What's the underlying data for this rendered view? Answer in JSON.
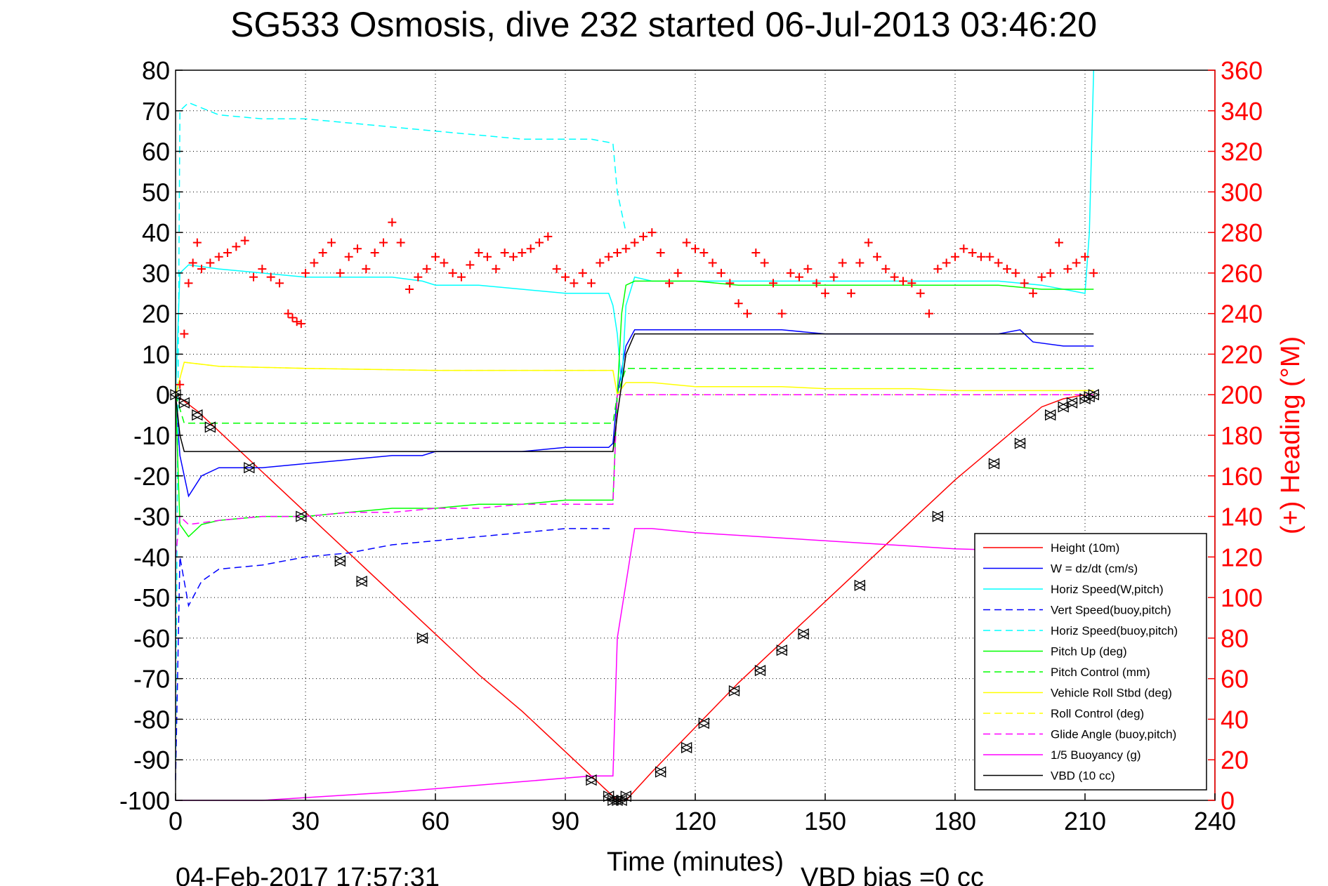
{
  "title": "SG533 Osmosis, dive 232 started 06-Jul-2013 03:46:20",
  "footer": {
    "timestamp": "04-Feb-2017 17:57:31",
    "vbd_bias": "VBD bias =0 cc"
  },
  "chart_data": {
    "type": "line",
    "title": "SG533 Osmosis, dive 232 started 06-Jul-2013 03:46:20",
    "xlabel": "Time (minutes)",
    "ylabel": "",
    "y2label": "(+) Heading (°M)",
    "xlim": [
      0,
      240
    ],
    "ylim": [
      -100,
      80
    ],
    "y2lim": [
      0,
      360
    ],
    "xticks": [
      "0",
      "30",
      "60",
      "90",
      "120",
      "150",
      "180",
      "210",
      "240"
    ],
    "yticks": [
      "80",
      "70",
      "60",
      "50",
      "40",
      "30",
      "20",
      "10",
      "0",
      "-10",
      "-20",
      "-30",
      "-40",
      "-50",
      "-60",
      "-70",
      "-80",
      "-90",
      "-100"
    ],
    "y2ticks": [
      "360",
      "340",
      "320",
      "300",
      "280",
      "260",
      "240",
      "220",
      "200",
      "180",
      "160",
      "140",
      "120",
      "100",
      "80",
      "60",
      "40",
      "20",
      "0"
    ],
    "grid": true,
    "legend_position": "bottom-right",
    "colors": {
      "red": "#ff0000",
      "blue": "#0000ff",
      "cyan": "#00ffff",
      "green": "#00ff00",
      "yellow": "#ffff00",
      "magenta": "#ff00ff",
      "black": "#000000"
    },
    "series": [
      {
        "name": "Height (10m)",
        "color": "#ff0000",
        "dash": "solid",
        "x": [
          0,
          5,
          10,
          20,
          30,
          40,
          50,
          60,
          70,
          80,
          90,
          100,
          102,
          104,
          110,
          120,
          130,
          140,
          150,
          160,
          170,
          180,
          190,
          200,
          205,
          210,
          212
        ],
        "y": [
          0,
          -4,
          -9,
          -19,
          -29,
          -39,
          -49,
          -59,
          -69,
          -78,
          -88,
          -98,
          -100,
          -100,
          -93,
          -82,
          -71,
          -61,
          -51,
          -41,
          -31,
          -21,
          -12,
          -3,
          -1,
          0,
          0
        ]
      },
      {
        "name": "W = dz/dt (cm/s)",
        "color": "#0000ff",
        "dash": "solid",
        "x": [
          0,
          1,
          3,
          6,
          10,
          20,
          30,
          40,
          50,
          57,
          60,
          70,
          80,
          90,
          100,
          101,
          102,
          104,
          106,
          110,
          120,
          130,
          140,
          150,
          160,
          170,
          180,
          190,
          195,
          198,
          205,
          212
        ],
        "y": [
          0,
          -15,
          -25,
          -20,
          -18,
          -18,
          -17,
          -16,
          -15,
          -15,
          -14,
          -14,
          -14,
          -13,
          -13,
          -12,
          0,
          12,
          16,
          16,
          16,
          16,
          16,
          15,
          15,
          15,
          15,
          15,
          16,
          13,
          12,
          12
        ]
      },
      {
        "name": "Horiz Speed(W,pitch)",
        "color": "#00ffff",
        "dash": "solid",
        "x": [
          0,
          1,
          3,
          10,
          20,
          30,
          40,
          50,
          57,
          60,
          70,
          80,
          90,
          100,
          101,
          102,
          103,
          104,
          106,
          110,
          120,
          130,
          140,
          150,
          160,
          170,
          180,
          190,
          200,
          210,
          211,
          212
        ],
        "y": [
          0,
          30,
          32,
          31,
          30,
          29,
          29,
          29,
          28,
          27,
          27,
          26,
          25,
          25,
          22,
          15,
          2,
          22,
          29,
          28,
          28,
          28,
          28,
          28,
          28,
          28,
          28,
          28,
          27,
          25,
          40,
          80
        ]
      },
      {
        "name": "Vert Speed(buoy,pitch)",
        "color": "#0000ff",
        "dash": "dashed",
        "x": [
          0,
          1,
          3,
          6,
          10,
          20,
          30,
          40,
          50,
          60,
          70,
          80,
          90,
          96,
          101
        ],
        "y": [
          -95,
          -40,
          -52,
          -46,
          -43,
          -42,
          -40,
          -39,
          -37,
          -36,
          -35,
          -34,
          -33,
          -33,
          -33
        ]
      },
      {
        "name": "Horiz Speed(buoy,pitch)",
        "color": "#00ffff",
        "dash": "dashed",
        "x": [
          0,
          1,
          3,
          10,
          20,
          30,
          40,
          50,
          60,
          70,
          80,
          90,
          96,
          101,
          102,
          104
        ],
        "y": [
          -90,
          70,
          72,
          69,
          68,
          68,
          67,
          66,
          65,
          64,
          63,
          63,
          63,
          62,
          50,
          40
        ]
      },
      {
        "name": "Pitch Up (deg)",
        "color": "#00ff00",
        "dash": "solid",
        "x": [
          0,
          1,
          3,
          6,
          10,
          20,
          30,
          40,
          50,
          60,
          70,
          80,
          90,
          96,
          101,
          102,
          103,
          104,
          106,
          110,
          120,
          130,
          140,
          150,
          160,
          170,
          180,
          190,
          200,
          210,
          212
        ],
        "y": [
          0,
          -32,
          -35,
          -32,
          -31,
          -30,
          -30,
          -29,
          -28,
          -28,
          -27,
          -27,
          -26,
          -26,
          -26,
          0,
          20,
          27,
          28,
          28,
          28,
          27,
          27,
          27,
          27,
          27,
          27,
          27,
          26,
          26,
          26
        ]
      },
      {
        "name": "Pitch Control (mm)",
        "color": "#00ff00",
        "dash": "dashed",
        "x": [
          0,
          2,
          101,
          102,
          104,
          212
        ],
        "y": [
          0,
          -7,
          -7,
          0,
          6.5,
          6.5
        ]
      },
      {
        "name": "Vehicle Roll Stbd (deg)",
        "color": "#ffff00",
        "dash": "solid",
        "x": [
          0,
          2,
          10,
          30,
          60,
          90,
          101,
          102,
          104,
          110,
          120,
          130,
          140,
          150,
          160,
          170,
          180,
          190,
          200,
          212
        ],
        "y": [
          0,
          8,
          7,
          6.5,
          6,
          6,
          6,
          0,
          3,
          3,
          2,
          2,
          2,
          1.5,
          1.5,
          1.5,
          1,
          1,
          1,
          1
        ]
      },
      {
        "name": "Roll Control (deg)",
        "color": "#ffff00",
        "dash": "dashed",
        "x": [
          0,
          2,
          10,
          30,
          60,
          90,
          101,
          102,
          104,
          212
        ],
        "y": [
          0,
          8,
          7,
          6.5,
          6,
          6,
          6,
          0,
          0,
          0
        ]
      },
      {
        "name": "Glide Angle (buoy,pitch)",
        "color": "#ff00ff",
        "dash": "dashed",
        "x": [
          0,
          1,
          3,
          10,
          20,
          30,
          40,
          50,
          60,
          70,
          80,
          90,
          96,
          101,
          102,
          104,
          212
        ],
        "y": [
          -40,
          -30,
          -32,
          -31,
          -30,
          -30,
          -29,
          -29,
          -28,
          -28,
          -27,
          -27,
          -27,
          -27,
          0,
          0,
          0
        ]
      },
      {
        "name": "1/5 Buoyancy (g)",
        "color": "#ff00ff",
        "dash": "solid",
        "x": [
          0,
          20,
          50,
          96,
          101,
          102,
          106,
          110,
          120,
          150,
          180,
          212
        ],
        "y": [
          -100,
          -100,
          -98,
          -94,
          -94,
          -60,
          -33,
          -33,
          -34,
          -36,
          -38,
          -39
        ]
      },
      {
        "name": "VBD (10 cc)",
        "color": "#000000",
        "dash": "solid",
        "x": [
          0,
          1,
          2,
          101,
          102,
          104,
          106,
          212
        ],
        "y": [
          0,
          -10,
          -14,
          -14,
          -5,
          10,
          15,
          15
        ]
      }
    ],
    "heading": {
      "name": "(+) Heading (°M)",
      "color": "#ff0000",
      "marker": "+",
      "axis": "right",
      "x": [
        1,
        2,
        3,
        4,
        5,
        6,
        8,
        10,
        12,
        14,
        16,
        18,
        20,
        22,
        24,
        26,
        27,
        28,
        29,
        30,
        32,
        34,
        36,
        38,
        40,
        42,
        44,
        46,
        48,
        50,
        52,
        54,
        56,
        58,
        60,
        62,
        64,
        66,
        68,
        70,
        72,
        74,
        76,
        78,
        80,
        82,
        84,
        86,
        88,
        90,
        92,
        94,
        96,
        98,
        100,
        102,
        104,
        106,
        108,
        110,
        112,
        114,
        116,
        118,
        120,
        122,
        124,
        126,
        128,
        130,
        132,
        134,
        136,
        138,
        140,
        142,
        144,
        146,
        148,
        150,
        152,
        154,
        156,
        158,
        160,
        162,
        164,
        166,
        168,
        170,
        172,
        174,
        176,
        178,
        180,
        182,
        184,
        186,
        188,
        190,
        192,
        194,
        196,
        198,
        200,
        202,
        204,
        206,
        208,
        210,
        212
      ],
      "y": [
        205,
        230,
        255,
        265,
        275,
        262,
        265,
        268,
        270,
        273,
        276,
        258,
        262,
        258,
        255,
        240,
        238,
        236,
        235,
        260,
        265,
        270,
        275,
        260,
        268,
        272,
        262,
        270,
        275,
        285,
        275,
        252,
        258,
        262,
        268,
        265,
        260,
        258,
        264,
        270,
        268,
        262,
        270,
        268,
        270,
        272,
        275,
        278,
        262,
        258,
        255,
        260,
        255,
        265,
        268,
        270,
        272,
        275,
        278,
        280,
        270,
        255,
        260,
        275,
        272,
        270,
        265,
        260,
        255,
        245,
        240,
        270,
        265,
        255,
        240,
        260,
        258,
        262,
        255,
        250,
        258,
        265,
        250,
        265,
        275,
        268,
        262,
        258,
        256,
        255,
        250,
        240,
        262,
        265,
        268,
        272,
        270,
        268,
        268,
        265,
        262,
        260,
        255,
        250,
        258,
        260,
        275,
        262,
        265,
        268,
        260
      ]
    },
    "markers": {
      "name": "Height markers",
      "color": "#000000",
      "x": [
        0,
        2,
        5,
        8,
        17,
        29,
        38,
        43,
        57,
        96,
        100,
        101,
        102,
        103,
        104,
        112,
        118,
        122,
        129,
        135,
        140,
        145,
        158,
        176,
        189,
        195,
        202,
        205,
        207,
        210,
        211,
        212
      ],
      "y": [
        0,
        -2,
        -5,
        -8,
        -18,
        -30,
        -41,
        -46,
        -60,
        -95,
        -99,
        -100,
        -100,
        -100,
        -99,
        -93,
        -87,
        -81,
        -73,
        -68,
        -63,
        -59,
        -47,
        -30,
        -17,
        -12,
        -5,
        -3,
        -2,
        -1,
        -0.5,
        0
      ]
    }
  }
}
